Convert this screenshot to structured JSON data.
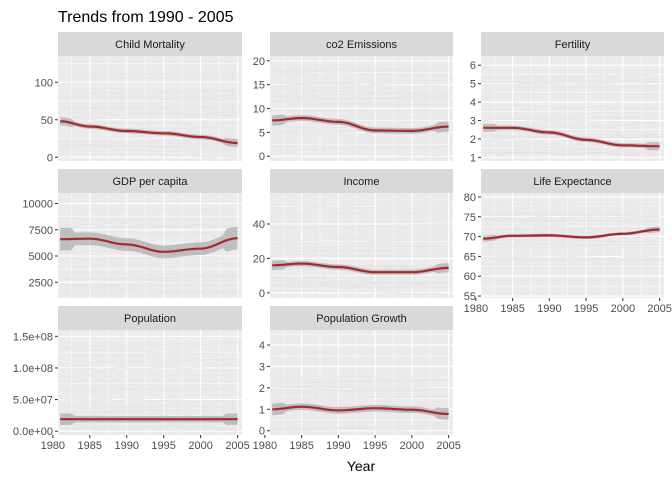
{
  "chart_data": {
    "type": "line",
    "title": "Trends from 1990 - 2005",
    "xlabel": "Year",
    "ylabel": "",
    "x_ticks": [
      1980,
      1985,
      1990,
      1995,
      2000,
      2005
    ],
    "xlim": [
      1980.7,
      2005.6
    ],
    "colors": {
      "smooth_line": "#a52a2a",
      "confidence_band": "#999999",
      "background_lines": "#e6e6e6",
      "panel_background": "#ebebeb",
      "strip_background": "#d9d9d9",
      "grid": "#ffffff"
    },
    "panels": [
      {
        "name": "Child Mortality",
        "ylim": [
          -5,
          135
        ],
        "y_ticks": [
          0,
          50,
          100
        ],
        "y_tick_labels": [
          "0",
          "50",
          "100"
        ],
        "smooth": {
          "x": [
            1981,
            1985,
            1990,
            1995,
            2000,
            2005
          ],
          "y": [
            48,
            41,
            35,
            32,
            27,
            19
          ]
        },
        "band_halfwidth": 3,
        "background_range": [
          5,
          110
        ]
      },
      {
        "name": "co2 Emissions",
        "ylim": [
          -1,
          21
        ],
        "y_ticks": [
          0,
          5,
          10,
          15,
          20
        ],
        "y_tick_labels": [
          "0",
          "5",
          "10",
          "15",
          "20"
        ],
        "smooth": {
          "x": [
            1981,
            1985,
            1990,
            1995,
            2000,
            2005
          ],
          "y": [
            7.5,
            8.0,
            7.2,
            5.4,
            5.3,
            6.2
          ]
        },
        "band_halfwidth": 0.6,
        "background_range": [
          0.5,
          18
        ]
      },
      {
        "name": "Fertility",
        "ylim": [
          0.8,
          6.5
        ],
        "y_ticks": [
          1,
          2,
          3,
          4,
          5,
          6
        ],
        "y_tick_labels": [
          "1",
          "2",
          "3",
          "4",
          "5",
          "6"
        ],
        "smooth": {
          "x": [
            1981,
            1985,
            1990,
            1995,
            2000,
            2005
          ],
          "y": [
            2.6,
            2.6,
            2.35,
            1.95,
            1.65,
            1.6
          ]
        },
        "band_halfwidth": 0.12,
        "background_range": [
          1.2,
          5.5
        ]
      },
      {
        "name": "GDP per capita",
        "ylim": [
          1000,
          11000
        ],
        "y_ticks": [
          2500,
          5000,
          7500,
          10000
        ],
        "y_tick_labels": [
          "2500",
          "5000",
          "7500",
          "10000"
        ],
        "smooth": {
          "x": [
            1981,
            1985,
            1990,
            1995,
            2000,
            2005
          ],
          "y": [
            6600,
            6650,
            6100,
            5400,
            5700,
            6700
          ]
        },
        "band_halfwidth": 600,
        "background_range": [
          1500,
          10500
        ]
      },
      {
        "name": "Income",
        "ylim": [
          -3,
          58
        ],
        "y_ticks": [
          0,
          20,
          40
        ],
        "y_tick_labels": [
          "0",
          "20",
          "40"
        ],
        "smooth": {
          "x": [
            1981,
            1985,
            1990,
            1995,
            2000,
            2005
          ],
          "y": [
            16,
            17,
            15,
            12,
            12,
            14.5
          ]
        },
        "band_halfwidth": 1.5,
        "background_range": [
          2,
          50
        ]
      },
      {
        "name": "Life Expectance",
        "ylim": [
          54.5,
          81
        ],
        "y_ticks": [
          55,
          60,
          65,
          70,
          75,
          80
        ],
        "y_tick_labels": [
          "55",
          "60",
          "65",
          "70",
          "75",
          "80"
        ],
        "smooth": {
          "x": [
            1981,
            1985,
            1990,
            1995,
            2000,
            2005
          ],
          "y": [
            69.5,
            70.2,
            70.3,
            69.8,
            70.7,
            71.8
          ]
        },
        "band_halfwidth": 0.4,
        "background_range": [
          62,
          79
        ]
      },
      {
        "name": "Population",
        "ylim": [
          -6000000,
          160000000
        ],
        "y_ticks": [
          0,
          50000000,
          100000000,
          150000000
        ],
        "y_tick_labels": [
          "0.0e+00",
          "5.0e+07",
          "1.0e+08",
          "1.5e+08"
        ],
        "smooth": {
          "x": [
            1981,
            1985,
            1990,
            1995,
            2000,
            2005
          ],
          "y": [
            19000000,
            19000000,
            19000000,
            19000000,
            19000000,
            19000000
          ]
        },
        "band_halfwidth": 5000000,
        "background_range": [
          1000000,
          145000000
        ]
      },
      {
        "name": "Population Growth",
        "ylim": [
          -0.2,
          4.7
        ],
        "y_ticks": [
          0,
          1,
          2,
          3,
          4
        ],
        "y_tick_labels": [
          "0",
          "1",
          "2",
          "3",
          "4"
        ],
        "smooth": {
          "x": [
            1981,
            1985,
            1990,
            1995,
            2000,
            2005
          ],
          "y": [
            1.0,
            1.12,
            0.95,
            1.05,
            0.98,
            0.78
          ]
        },
        "band_halfwidth": 0.15,
        "background_range": [
          0,
          2.6
        ]
      }
    ]
  }
}
